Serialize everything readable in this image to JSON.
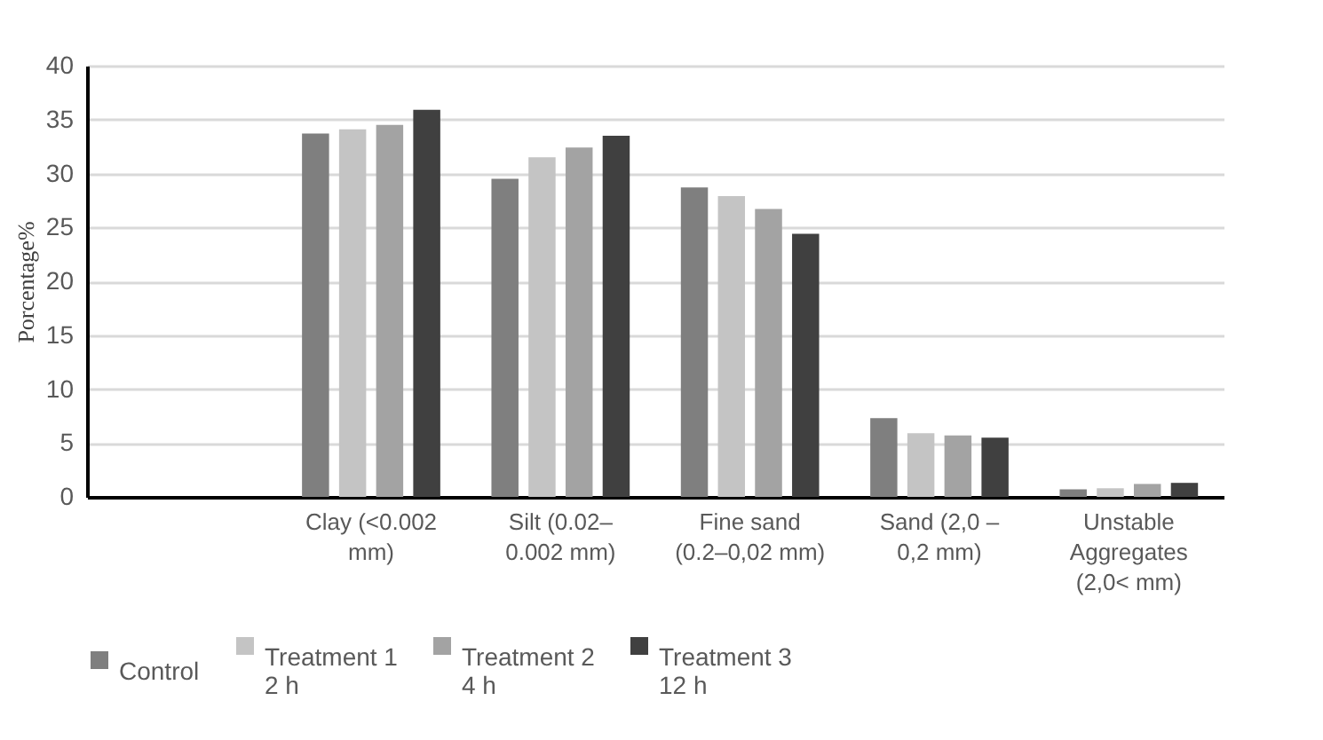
{
  "chart_data": {
    "type": "bar",
    "ylabel": "Porcentage%",
    "categories": [
      null,
      "Clay (<0.002 mm)",
      "Silt (0.02–0.002 mm)",
      "Fine sand (0.2–0,02 mm)",
      "Sand (2,0 –0,2 mm)",
      "Unstable Aggregates (2,0< mm)"
    ],
    "series": [
      {
        "name": "Control",
        "color": "#7f7f7f",
        "values": [
          null,
          33.7,
          29.5,
          28.7,
          7.3,
          0.7
        ]
      },
      {
        "name": "Treatment 1 2 h",
        "color": "#c4c4c4",
        "values": [
          null,
          34.1,
          31.5,
          27.9,
          5.9,
          0.8
        ]
      },
      {
        "name": "Treatment 2 4 h",
        "color": "#a3a3a3",
        "values": [
          null,
          34.5,
          32.4,
          26.7,
          5.7,
          1.2
        ]
      },
      {
        "name": "Treatment 3 12 h",
        "color": "#404040",
        "values": [
          null,
          35.9,
          33.5,
          24.4,
          5.5,
          1.3
        ]
      }
    ],
    "ylim": [
      0,
      40
    ],
    "yticks": [
      0,
      5,
      10,
      15,
      20,
      25,
      30,
      35,
      40
    ],
    "grid": "y",
    "legend": "bottom"
  }
}
